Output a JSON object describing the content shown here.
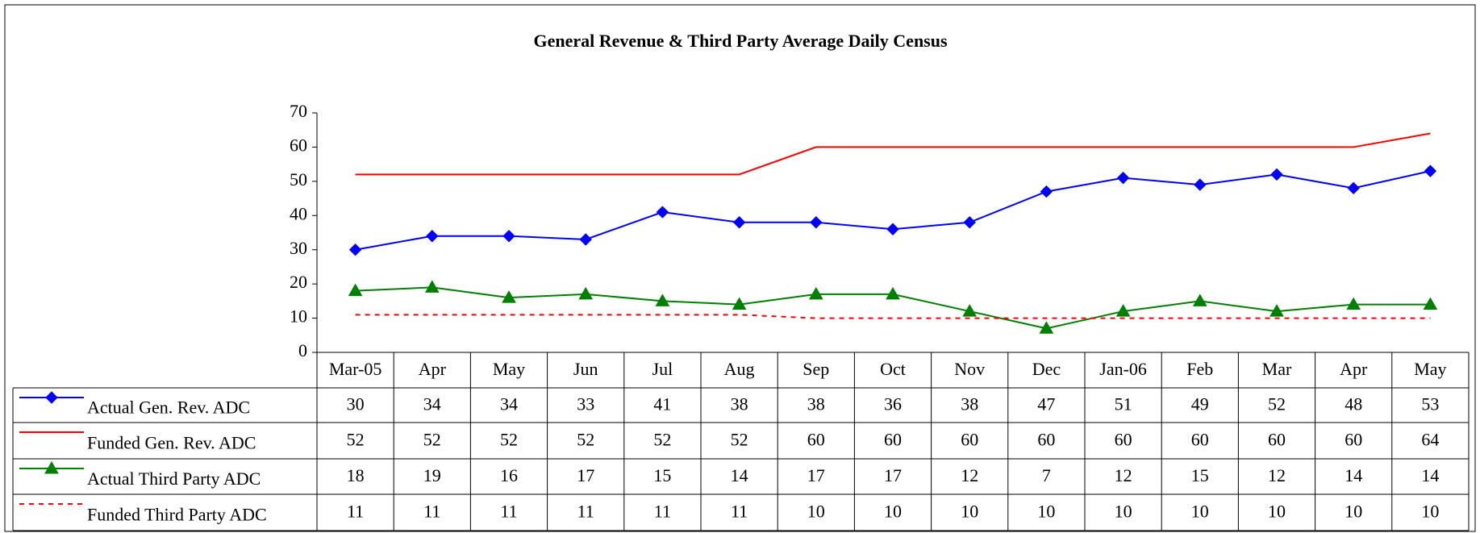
{
  "chart_data": {
    "type": "line",
    "title": "General Revenue & Third Party Average Daily Census",
    "categories": [
      "Mar-05",
      "Apr",
      "May",
      "Jun",
      "Jul",
      "Aug",
      "Sep",
      "Oct",
      "Nov",
      "Dec",
      "Jan-06",
      "Feb",
      "Mar",
      "Apr",
      "May"
    ],
    "series": [
      {
        "name": "Actual Gen. Rev. ADC",
        "color": "#0000ff",
        "marker": "diamond",
        "line_style": "solid",
        "values": [
          30,
          34,
          34,
          33,
          41,
          38,
          38,
          36,
          38,
          47,
          51,
          49,
          52,
          48,
          53
        ]
      },
      {
        "name": "Funded Gen. Rev. ADC",
        "color": "#ff0000",
        "line_style": "solid",
        "values": [
          52,
          52,
          52,
          52,
          52,
          52,
          60,
          60,
          60,
          60,
          60,
          60,
          60,
          60,
          64
        ]
      },
      {
        "name": "Actual Third Party ADC",
        "color": "#008000",
        "marker": "triangle",
        "line_style": "solid",
        "values": [
          18,
          19,
          16,
          17,
          15,
          14,
          17,
          17,
          12,
          7,
          12,
          15,
          12,
          14,
          14
        ]
      },
      {
        "name": "Funded Third Party ADC",
        "color": "#ff0000",
        "line_style": "dashed",
        "values": [
          11,
          11,
          11,
          11,
          11,
          11,
          10,
          10,
          10,
          10,
          10,
          10,
          10,
          10,
          10
        ]
      }
    ],
    "ylim": [
      0,
      70
    ],
    "yticks": [
      0,
      10,
      20,
      30,
      40,
      50,
      60,
      70
    ],
    "data_table": true
  }
}
